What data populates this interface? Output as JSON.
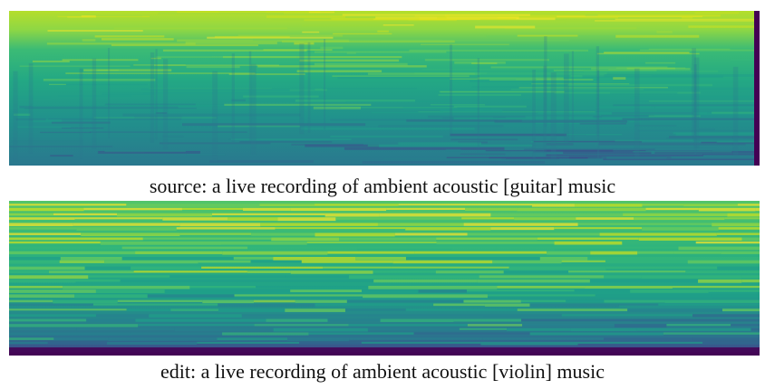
{
  "figure": {
    "panels": [
      {
        "caption": "source: a live recording of ambient acoustic [guitar] music"
      },
      {
        "caption": "edit: a live recording of ambient acoustic [violin] music"
      }
    ]
  }
}
